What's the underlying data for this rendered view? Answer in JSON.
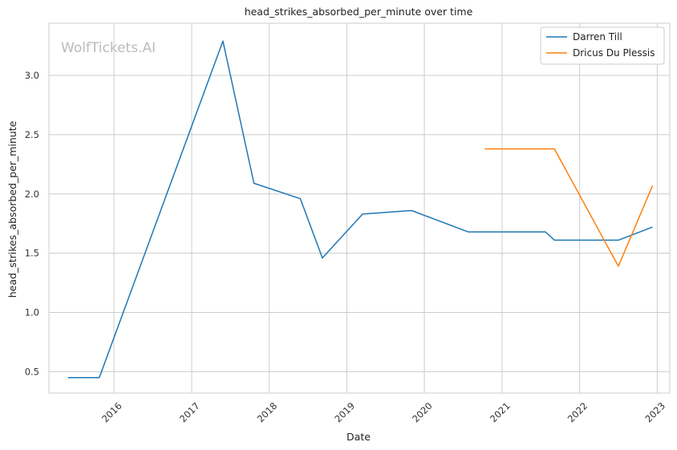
{
  "chart_data": {
    "type": "line",
    "title": "head_strikes_absorbed_per_minute over time",
    "xlabel": "Date",
    "ylabel": "head_strikes_absorbed_per_minute",
    "watermark": "WolfTickets.AI",
    "x_ticks": [
      "2016",
      "2017",
      "2018",
      "2019",
      "2020",
      "2021",
      "2022",
      "2023"
    ],
    "y_ticks": [
      "0.5",
      "1.0",
      "1.5",
      "2.0",
      "2.5",
      "3.0"
    ],
    "ylim": [
      0.32,
      3.44
    ],
    "xlim": [
      "2015-03-01",
      "2023-03-01"
    ],
    "grid": true,
    "legend_position": "top-right",
    "series": [
      {
        "name": "Darren Till",
        "color": "#1f77b4",
        "points": [
          {
            "x": "2015-05-30",
            "y": 0.45
          },
          {
            "x": "2015-10-24",
            "y": 0.45
          },
          {
            "x": "2017-05-28",
            "y": 3.29
          },
          {
            "x": "2017-10-21",
            "y": 2.09
          },
          {
            "x": "2018-05-27",
            "y": 1.96
          },
          {
            "x": "2018-09-08",
            "y": 1.46
          },
          {
            "x": "2019-03-16",
            "y": 1.83
          },
          {
            "x": "2019-11-02",
            "y": 1.86
          },
          {
            "x": "2020-07-25",
            "y": 1.68
          },
          {
            "x": "2021-07-24",
            "y": 1.68
          },
          {
            "x": "2021-09-04",
            "y": 1.61
          },
          {
            "x": "2022-07-02",
            "y": 1.61
          },
          {
            "x": "2022-12-10",
            "y": 1.72
          }
        ]
      },
      {
        "name": "Dricus Du Plessis",
        "color": "#ff7f0e",
        "points": [
          {
            "x": "2020-10-11",
            "y": 2.38
          },
          {
            "x": "2021-09-04",
            "y": 2.38
          },
          {
            "x": "2022-07-02",
            "y": 1.39
          },
          {
            "x": "2022-12-10",
            "y": 2.07
          }
        ]
      }
    ]
  }
}
